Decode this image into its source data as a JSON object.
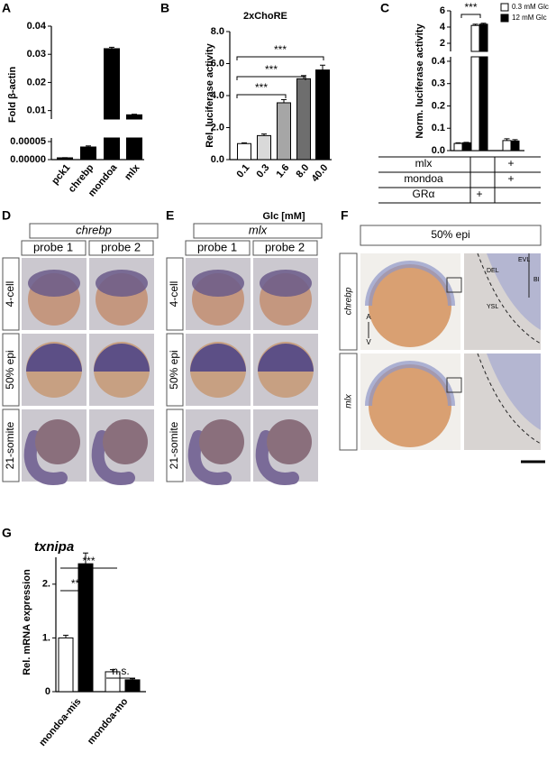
{
  "chart_data": [
    {
      "type": "bar",
      "letter": "A",
      "ylabel": "Fold β-actin",
      "categories": [
        "pck1",
        "chrebp",
        "mondoa",
        "mlx"
      ],
      "values": [
        5e-06,
        3.5e-05,
        0.032,
        0.0085
      ],
      "errors": [
        5e-07,
        3e-06,
        0.0005,
        0.0002
      ],
      "color": "#000000",
      "axis_segments": [
        {
          "ylim": [
            0,
            6e-05
          ],
          "yticks": [
            {
              "value": 0,
              "label": "0.00000"
            },
            5e-05
          ]
        },
        {
          "ylim": [
            0.007,
            0.04
          ],
          "yticks": [
            0.01,
            0.02,
            0.03,
            0.04
          ]
        }
      ]
    },
    {
      "type": "bar",
      "letter": "B",
      "title": "2xChoRE",
      "ylabel": "Rel. luciferase activity",
      "xlabel": "Glc [mM]",
      "categories": [
        "0.1",
        "0.3",
        "1.6",
        "8.0",
        "40.0"
      ],
      "values": [
        1.0,
        1.5,
        3.55,
        5.05,
        5.6
      ],
      "errors": [
        0.05,
        0.1,
        0.2,
        0.2,
        0.3
      ],
      "colors": [
        "#ffffff",
        "#d9d9d9",
        "#a6a6a6",
        "#6e6e6e",
        "#000000"
      ],
      "ylim": [
        0,
        8
      ],
      "yticks": [
        {
          "value": 0,
          "label": "0.0"
        },
        {
          "value": 2,
          "label": "2.0"
        },
        {
          "value": 4,
          "label": "4.0"
        },
        {
          "value": 6,
          "label": "6.0"
        },
        {
          "value": 8,
          "label": "8.0"
        }
      ],
      "annotations": [
        "***",
        "***",
        "***"
      ]
    },
    {
      "type": "bar",
      "letter": "C",
      "ylabel": "Norm. luciferase activity",
      "categories": [
        null,
        null,
        null
      ],
      "series": [
        {
          "name": "0.3 mM Glc",
          "color": "#ffffff",
          "values": [
            0.032,
            4.2,
            0.045
          ],
          "errors": [
            0.003,
            0.15,
            0.008
          ]
        },
        {
          "name": "12 mM Glc",
          "color": "#000000",
          "values": [
            0.035,
            4.35,
            0.043
          ],
          "errors": [
            0.002,
            0.12,
            0.006
          ]
        }
      ],
      "axis_segments": [
        {
          "ylim": [
            0,
            0.42
          ],
          "yticks": [
            {
              "value": 0,
              "label": "0.0"
            },
            0.1,
            0.2,
            0.3,
            0.4
          ]
        },
        {
          "ylim": [
            1,
            6
          ],
          "yticks": [
            2,
            4,
            6
          ]
        }
      ],
      "annotations": [
        "***"
      ],
      "table": [
        {
          "label": "mlx",
          "cells": [
            null,
            null,
            "+"
          ]
        },
        {
          "label": "mondoa",
          "cells": [
            null,
            null,
            "+"
          ]
        },
        {
          "label": "GRα",
          "cells": [
            null,
            "+",
            null
          ]
        }
      ]
    },
    {
      "type": "bar",
      "letter": "G",
      "title": "txnipa",
      "ylabel": "Rel. mRNA expression",
      "categories": [
        "mondoa-mis",
        "mondoa-mo"
      ],
      "series": [
        {
          "color": "#ffffff",
          "values": [
            1.0,
            0.37
          ],
          "errors": [
            0.05,
            0.04
          ]
        },
        {
          "color": "#000000",
          "values": [
            2.38,
            0.22
          ],
          "errors": [
            0.2,
            0.02
          ]
        }
      ],
      "ylim": [
        0,
        2.5
      ],
      "yticks": [
        0,
        {
          "value": 1,
          "label": "1."
        },
        {
          "value": 2,
          "label": "2."
        }
      ],
      "annotations": [
        "**",
        "***",
        "n.s."
      ]
    }
  ],
  "image_panels": [
    {
      "letter": "D",
      "gene": "chrebp",
      "columns": [
        "probe 1",
        "probe 2"
      ],
      "rows": [
        "4-cell",
        "50% epi",
        "21-somite"
      ]
    },
    {
      "letter": "E",
      "gene": "mlx",
      "columns": [
        "probe 1",
        "probe 2"
      ],
      "rows": [
        "4-cell",
        "50% epi",
        "21-somite"
      ]
    },
    {
      "letter": "F",
      "header": "50% epi",
      "rows": [
        "chrebp",
        "mlx"
      ],
      "inset_labels": [
        "EVL",
        "BI",
        "DEL",
        "YSL"
      ],
      "axis_labels": [
        "A",
        "V"
      ]
    }
  ]
}
